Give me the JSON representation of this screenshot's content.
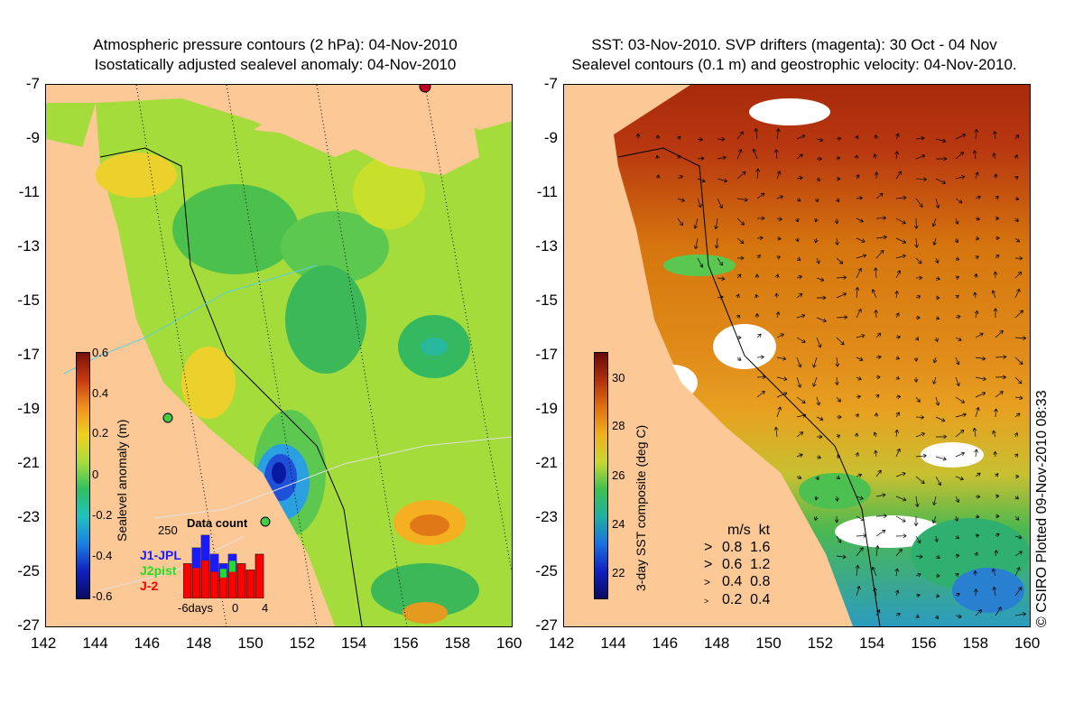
{
  "left_panel": {
    "title_line1": "Atmospheric pressure contours (2 hPa): 04-Nov-2010",
    "title_line2": "Isostatically adjusted sealevel anomaly: 04-Nov-2010",
    "colorbar": {
      "label": "Sealevel anomaly (m)",
      "ticks": [
        "0.6",
        "0.4",
        "0.2",
        "0",
        "-0.2",
        "-0.4",
        "-0.6"
      ]
    },
    "data_count": {
      "title": "Data count",
      "y_max": "250",
      "x_ticks": [
        "-6days",
        "0",
        "4"
      ],
      "satellites": [
        "J1-JPL",
        "J2pist",
        "J-2"
      ],
      "sat_colors": [
        "#1a1aff",
        "#22dd22",
        "#ff0000"
      ],
      "bar_values": [
        0.55,
        0.8,
        1.0,
        0.7,
        0.55,
        0.7,
        0.55,
        0.45,
        0.7
      ]
    }
  },
  "right_panel": {
    "title_line1": "SST: 03-Nov-2010. SVP drifters (magenta): 30 Oct - 04 Nov",
    "title_line2": "Sealevel contours (0.1 m) and geostrophic velocity: 04-Nov-2010.",
    "colorbar": {
      "label": "3-day SST composite (deg C)",
      "ticks": [
        "30",
        "28",
        "26",
        "24",
        "22"
      ]
    },
    "velocity_legend": {
      "header_ms": "m/s",
      "header_kt": "kt",
      "rows": [
        {
          "ms": "0.8",
          "kt": "1.6"
        },
        {
          "ms": "0.6",
          "kt": "1.2"
        },
        {
          "ms": "0.4",
          "kt": "0.8"
        },
        {
          "ms": "0.2",
          "kt": "0.4"
        }
      ]
    }
  },
  "axes": {
    "y_ticks": [
      "-7",
      "-9",
      "-11",
      "-13",
      "-15",
      "-17",
      "-19",
      "-21",
      "-23",
      "-25",
      "-27"
    ],
    "x_ticks": [
      "142",
      "144",
      "146",
      "148",
      "150",
      "152",
      "154",
      "156",
      "158",
      "160"
    ]
  },
  "credit": "© CSIRO Plotted 09-Nov-2010 08:33",
  "colors": {
    "land": "#fcc896",
    "ocean_green": "#a4dc3c",
    "sst_warm": "#d6760e",
    "sst_hot": "#a82a0a"
  }
}
